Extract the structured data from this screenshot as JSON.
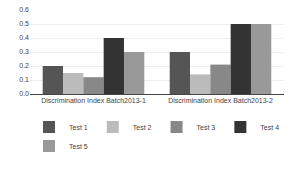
{
  "chart_data": {
    "type": "bar",
    "categories": [
      "Discrimination Index Batch2013-1",
      "Discrimination Index Batch2013-2"
    ],
    "series": [
      {
        "name": "Test 1",
        "color": "#555555",
        "values": [
          0.2,
          0.3
        ]
      },
      {
        "name": "Test 2",
        "color": "#bbbbbb",
        "values": [
          0.15,
          0.14
        ]
      },
      {
        "name": "Test 3",
        "color": "#888888",
        "values": [
          0.12,
          0.21
        ]
      },
      {
        "name": "Test 4",
        "color": "#333333",
        "values": [
          0.4,
          0.5
        ]
      },
      {
        "name": "Test 5",
        "color": "#999999",
        "values": [
          0.3,
          0.5
        ]
      }
    ],
    "ylim": [
      0,
      0.6
    ],
    "yticks": [
      {
        "value": 0,
        "label": "0.0"
      },
      0.1,
      0.2,
      0.3,
      0.4,
      0.5,
      0.6
    ],
    "grid": true,
    "legend": "bottom"
  }
}
